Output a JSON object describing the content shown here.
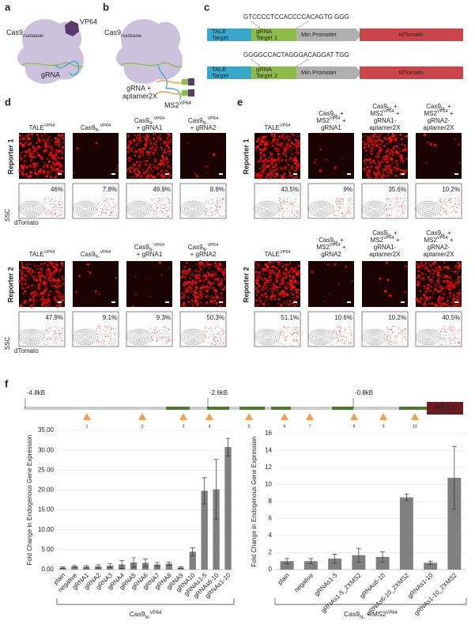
{
  "panel_labels": [
    "a",
    "b",
    "c",
    "d",
    "e",
    "f"
  ],
  "a": {
    "vp64": "VP64",
    "cas9": [
      {
        "text": "Cas9"
      },
      {
        "sub": "nuclease-"
      }
    ],
    "grna": "gRNA"
  },
  "b": {
    "cas9": [
      {
        "text": "Cas9"
      },
      {
        "sub": "nuclease-"
      }
    ],
    "grna": [
      "gRNA +",
      "aptamer2X"
    ],
    "ms2": [
      {
        "text": "MS2"
      },
      {
        "sup": "VP64"
      }
    ]
  },
  "c": {
    "constructs": [
      {
        "sequence": "GTCCCCTCCACCCCACAGTG GGG",
        "parts": [
          [
            "TALE",
            "Target"
          ],
          [
            "gRNA",
            "Target 1"
          ],
          [
            "Min Promoter"
          ],
          [
            "tdTomato"
          ]
        ]
      },
      {
        "sequence": "GGGGCCACTAGGGACAGGAT TGG",
        "parts": [
          [
            "TALE",
            "Target"
          ],
          [
            "gRNA",
            "Target 2"
          ],
          [
            "Min Promoter"
          ],
          [
            "tdTomato"
          ]
        ]
      }
    ]
  },
  "d": {
    "ssc": "SSC",
    "dtomato": "dTomato",
    "rows": [
      {
        "label": "Reporter 1",
        "headers": [
          [
            [
              {
                "text": "TALE"
              },
              {
                "sup": "VP64"
              }
            ]
          ],
          [
            [
              {
                "text": "Cas9"
              },
              {
                "sub": "N-"
              },
              {
                "sup": "VP64"
              }
            ]
          ],
          [
            [
              {
                "text": "Cas9"
              },
              {
                "sub": "N-"
              },
              {
                "sup": "VP64"
              }
            ],
            [
              {
                "text": "+ gRNA1"
              }
            ]
          ],
          [
            [
              {
                "text": "Cas9"
              },
              {
                "sub": "N-"
              },
              {
                "sup": "VP64"
              }
            ],
            [
              {
                "text": "+ gRNA2"
              }
            ]
          ]
        ],
        "percents": [
          "46%",
          "7.8%",
          "49.9%",
          "8.8%"
        ]
      },
      {
        "label": "Reporter 2",
        "headers": [
          [
            [
              {
                "text": "TALE"
              },
              {
                "sup": "VP64"
              }
            ]
          ],
          [
            [
              {
                "text": "Cas9"
              },
              {
                "sub": "N-"
              },
              {
                "sup": "VP64"
              }
            ]
          ],
          [
            [
              {
                "text": "Cas9"
              },
              {
                "sub": "N-"
              },
              {
                "sup": "VP64"
              }
            ],
            [
              {
                "text": "+ gRNA1"
              }
            ]
          ],
          [
            [
              {
                "text": "Cas9"
              },
              {
                "sub": "N-"
              },
              {
                "sup": "VP64"
              }
            ],
            [
              {
                "text": "+ gRNA2"
              }
            ]
          ]
        ],
        "percents": [
          "47.9%",
          "9.1%",
          "9.3%",
          "50.3%"
        ]
      }
    ]
  },
  "e": {
    "ssc": "SSC",
    "dtomato": "dTomato",
    "rows": [
      {
        "label": "Reporter 1",
        "headers": [
          [
            [
              {
                "text": "TALE"
              },
              {
                "sup": "VP64"
              }
            ]
          ],
          [
            [
              {
                "text": "Cas9"
              },
              {
                "sub": "N-"
              },
              {
                "text": " +"
              }
            ],
            [
              {
                "text": "MS2"
              },
              {
                "sup": "VP64"
              },
              {
                "text": " +"
              }
            ],
            [
              {
                "text": "gRNA1"
              }
            ]
          ],
          [
            [
              {
                "text": "Cas9"
              },
              {
                "sub": "N-"
              },
              {
                "text": " +"
              }
            ],
            [
              {
                "text": "MS2"
              },
              {
                "sup": "VP64"
              },
              {
                "text": " +"
              }
            ],
            [
              {
                "text": "gRNA1-"
              }
            ],
            [
              {
                "text": "aptamer2X"
              }
            ]
          ],
          [
            [
              {
                "text": "Cas9"
              },
              {
                "sub": "N-"
              },
              {
                "text": " +"
              }
            ],
            [
              {
                "text": "MS2"
              },
              {
                "sup": "VP64"
              },
              {
                "text": " +"
              }
            ],
            [
              {
                "text": "gRNA2-"
              }
            ],
            [
              {
                "text": "aptamer2X"
              }
            ]
          ]
        ],
        "percents": [
          "43.5%",
          "9%",
          "35.6%",
          "10.2%"
        ]
      },
      {
        "label": "Reporter 2",
        "headers": [
          [
            [
              {
                "text": "TALE"
              },
              {
                "sup": "VP64"
              }
            ]
          ],
          [
            [
              {
                "text": "Cas9"
              },
              {
                "sub": "N-"
              },
              {
                "text": " +"
              }
            ],
            [
              {
                "text": "MS2"
              },
              {
                "sup": "VP64"
              },
              {
                "text": " +"
              }
            ],
            [
              {
                "text": "gRNA2"
              }
            ]
          ],
          [
            [
              {
                "text": "Cas9"
              },
              {
                "sub": "N-"
              },
              {
                "text": " +"
              }
            ],
            [
              {
                "text": "MS2"
              },
              {
                "sup": "VP64"
              },
              {
                "text": " +"
              }
            ],
            [
              {
                "text": "gRNA1-"
              }
            ],
            [
              {
                "text": "aptamer2X"
              }
            ]
          ],
          [
            [
              {
                "text": "Cas9"
              },
              {
                "sub": "N-"
              },
              {
                "text": " +"
              }
            ],
            [
              {
                "text": "MS2"
              },
              {
                "sup": "VP64"
              },
              {
                "text": " +"
              }
            ],
            [
              {
                "text": "gRNA2-"
              }
            ],
            [
              {
                "text": "aptamer2X"
              }
            ]
          ]
        ],
        "percents": [
          "51.1%",
          "10.6%",
          "10.2%",
          "40.5%"
        ]
      }
    ]
  },
  "f": {
    "positions": [
      "-4.8kB",
      "-2.6kB",
      "-0.8kB"
    ],
    "gene": "REX1",
    "sites": [
      "1",
      "2",
      "3",
      "4",
      "5",
      "6",
      "7",
      "8",
      "9",
      "10"
    ]
  },
  "chart_data": [
    {
      "type": "bar",
      "y_label": "Fold Change in Endogenous Gene Expression",
      "color": "#808080",
      "group_label": [
        {
          "text": "Cas9"
        },
        {
          "sub": "N-"
        },
        {
          "sup": "VP64"
        }
      ],
      "categories": [
        "plain",
        "negative",
        "gRNA1",
        "gRNA2",
        "gRNA3",
        "gRNA4",
        "gRNA5",
        "gRNA6",
        "gRNA7",
        "gRNA8",
        "gRNA9",
        "gRNA10",
        "gRNAs1-5",
        "gRNAs6-10",
        "gRNAs1-10"
      ],
      "values": [
        0.5,
        0.8,
        0.7,
        0.8,
        1.0,
        1.3,
        1.8,
        1.7,
        1.3,
        1.5,
        0.5,
        4.5,
        19.8,
        20.2,
        30.8
      ],
      "errors": [
        0.2,
        0.2,
        0.3,
        0.4,
        0.5,
        1.0,
        1.2,
        1.0,
        0.5,
        0.4,
        0.2,
        1.0,
        3.3,
        7.5,
        2.2
      ],
      "ylim": [
        0,
        35
      ],
      "yticks": [
        {
          "value": 0,
          "label": "0.00"
        },
        {
          "value": 5,
          "label": "5.00"
        },
        {
          "value": 10,
          "label": "10.00"
        },
        {
          "value": 15,
          "label": "15.00"
        },
        {
          "value": 20,
          "label": "20.00"
        },
        {
          "value": 25,
          "label": "25.00"
        },
        {
          "value": 30,
          "label": "30.00"
        },
        {
          "value": 35,
          "label": "35.00"
        }
      ]
    },
    {
      "type": "bar",
      "y_label": "Fold Change in Endogenous Gene Expression",
      "color": "#808080",
      "group_label": [
        {
          "text": "Cas9"
        },
        {
          "sub": "N-"
        },
        {
          "text": " + MS2"
        },
        {
          "sup": "VP64"
        }
      ],
      "categories": [
        "plain",
        "negative",
        "gRNAs1-5",
        "gRNAs1-5_2XMS2",
        "gRNAs6-10",
        "gRNAs6-10_2XMS2",
        "gRNAs1-10",
        "gRNAs1-10_2XMS2"
      ],
      "values": [
        1.0,
        1.0,
        1.3,
        1.7,
        1.5,
        8.5,
        0.8,
        10.8
      ],
      "errors": [
        0.3,
        0.3,
        0.5,
        0.8,
        0.6,
        0.4,
        0.2,
        3.7
      ],
      "ylim": [
        0,
        16
      ],
      "yticks": [
        0,
        2,
        4,
        6,
        8,
        10,
        12,
        14,
        16
      ]
    }
  ]
}
